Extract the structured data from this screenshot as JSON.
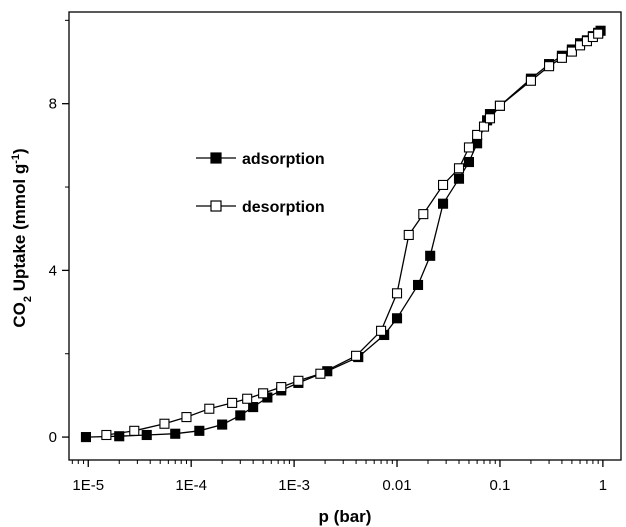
{
  "chart_data": {
    "type": "scatter",
    "x_scale": "log",
    "xlabel": "p (bar)",
    "ylabel_main": "CO",
    "ylabel_sub": "2",
    "ylabel_rest": " Uptake (mmol g",
    "ylabel_sup": "-1",
    "ylabel_end": ")",
    "xlim": [
      6.5e-06,
      1.5
    ],
    "ylim": [
      -0.55,
      10.2
    ],
    "x_ticks": [
      {
        "value": 1e-05,
        "label": "1E-5"
      },
      {
        "value": 0.0001,
        "label": "1E-4"
      },
      {
        "value": 0.001,
        "label": "1E-3"
      },
      {
        "value": 0.01,
        "label": "0.01"
      },
      {
        "value": 0.1,
        "label": "0.1"
      },
      {
        "value": 1,
        "label": "1"
      }
    ],
    "y_ticks": [
      {
        "value": 0,
        "label": "0"
      },
      {
        "value": 4,
        "label": "4"
      },
      {
        "value": 8,
        "label": "8"
      }
    ],
    "legend_position": "upper-left",
    "series": [
      {
        "name": "adsorption",
        "marker": "filled-square",
        "points": [
          [
            9.5e-06,
            0.0
          ],
          [
            2e-05,
            0.02
          ],
          [
            3.7e-05,
            0.05
          ],
          [
            7e-05,
            0.08
          ],
          [
            0.00012,
            0.15
          ],
          [
            0.0002,
            0.3
          ],
          [
            0.0003,
            0.52
          ],
          [
            0.0004,
            0.72
          ],
          [
            0.00055,
            0.95
          ],
          [
            0.00075,
            1.12
          ],
          [
            0.0011,
            1.3
          ],
          [
            0.0021,
            1.58
          ],
          [
            0.0042,
            1.92
          ],
          [
            0.0075,
            2.45
          ],
          [
            0.01,
            2.85
          ],
          [
            0.016,
            3.65
          ],
          [
            0.021,
            4.35
          ],
          [
            0.028,
            5.6
          ],
          [
            0.04,
            6.2
          ],
          [
            0.05,
            6.6
          ],
          [
            0.06,
            7.05
          ],
          [
            0.075,
            7.6
          ],
          [
            0.08,
            7.75
          ],
          [
            0.1,
            7.95
          ],
          [
            0.2,
            8.6
          ],
          [
            0.3,
            8.95
          ],
          [
            0.4,
            9.15
          ],
          [
            0.5,
            9.3
          ],
          [
            0.6,
            9.45
          ],
          [
            0.7,
            9.52
          ],
          [
            0.8,
            9.62
          ],
          [
            0.9,
            9.7
          ],
          [
            0.95,
            9.75
          ]
        ]
      },
      {
        "name": "desorption",
        "marker": "open-square",
        "points": [
          [
            1.5e-05,
            0.05
          ],
          [
            2.8e-05,
            0.15
          ],
          [
            5.5e-05,
            0.32
          ],
          [
            9e-05,
            0.48
          ],
          [
            0.00015,
            0.68
          ],
          [
            0.00025,
            0.82
          ],
          [
            0.00035,
            0.92
          ],
          [
            0.0005,
            1.05
          ],
          [
            0.00075,
            1.2
          ],
          [
            0.0011,
            1.35
          ],
          [
            0.0018,
            1.52
          ],
          [
            0.004,
            1.95
          ],
          [
            0.007,
            2.55
          ],
          [
            0.01,
            3.45
          ],
          [
            0.013,
            4.85
          ],
          [
            0.018,
            5.35
          ],
          [
            0.028,
            6.05
          ],
          [
            0.04,
            6.45
          ],
          [
            0.05,
            6.95
          ],
          [
            0.06,
            7.25
          ],
          [
            0.07,
            7.45
          ],
          [
            0.08,
            7.65
          ],
          [
            0.1,
            7.95
          ],
          [
            0.2,
            8.55
          ],
          [
            0.3,
            8.9
          ],
          [
            0.4,
            9.1
          ],
          [
            0.5,
            9.25
          ],
          [
            0.6,
            9.4
          ],
          [
            0.7,
            9.5
          ],
          [
            0.8,
            9.6
          ],
          [
            0.9,
            9.68
          ]
        ]
      }
    ]
  }
}
